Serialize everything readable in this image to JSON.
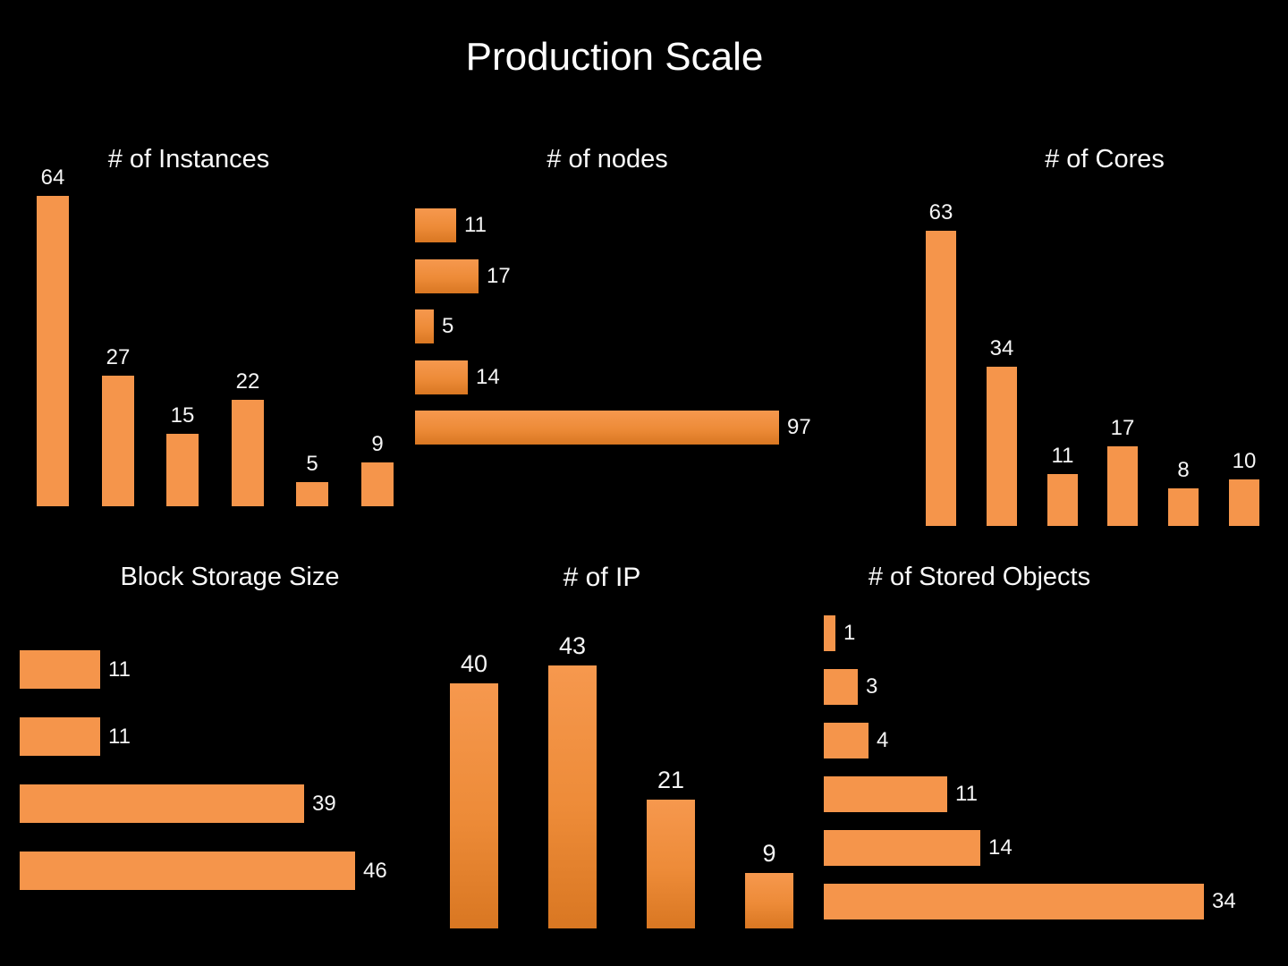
{
  "page_title": "Production Scale",
  "colors": {
    "background": "#000000",
    "text": "#FFFFFF",
    "bar_flat": "#F5954B",
    "bar_gradient_top": "#F6984E",
    "bar_gradient_bottom": "#D97722"
  },
  "chart_data": [
    {
      "id": "instances",
      "type": "bar",
      "orientation": "vertical",
      "title": "# of Instances",
      "values": [
        64,
        27,
        15,
        22,
        5,
        9
      ],
      "fill": "flat",
      "value_labels": "above bars",
      "axes": "none",
      "grid": false
    },
    {
      "id": "nodes",
      "type": "bar",
      "orientation": "horizontal",
      "title": "# of nodes",
      "values": [
        11,
        17,
        5,
        14,
        97
      ],
      "fill": "gradient",
      "value_labels": "right of bars",
      "axes": "none",
      "grid": false
    },
    {
      "id": "cores",
      "type": "bar",
      "orientation": "vertical",
      "title": "# of Cores",
      "values": [
        63,
        34,
        11,
        17,
        8,
        10
      ],
      "fill": "flat",
      "value_labels": "above bars",
      "axes": "none",
      "grid": false
    },
    {
      "id": "block-storage",
      "type": "bar",
      "orientation": "horizontal",
      "title": "Block Storage Size",
      "values": [
        11,
        11,
        39,
        46
      ],
      "fill": "flat",
      "value_labels": "right of bars",
      "axes": "none",
      "grid": false
    },
    {
      "id": "ip",
      "type": "bar",
      "orientation": "vertical",
      "title": "# of IP",
      "values": [
        40,
        43,
        21,
        9
      ],
      "fill": "gradient",
      "value_labels": "above bars",
      "axes": "none",
      "grid": false
    },
    {
      "id": "stored-objects",
      "type": "bar",
      "orientation": "horizontal",
      "title": "# of Stored Objects",
      "values": [
        1,
        3,
        4,
        11,
        14,
        34
      ],
      "fill": "flat",
      "value_labels": "right of bars",
      "axes": "none",
      "grid": false
    }
  ]
}
